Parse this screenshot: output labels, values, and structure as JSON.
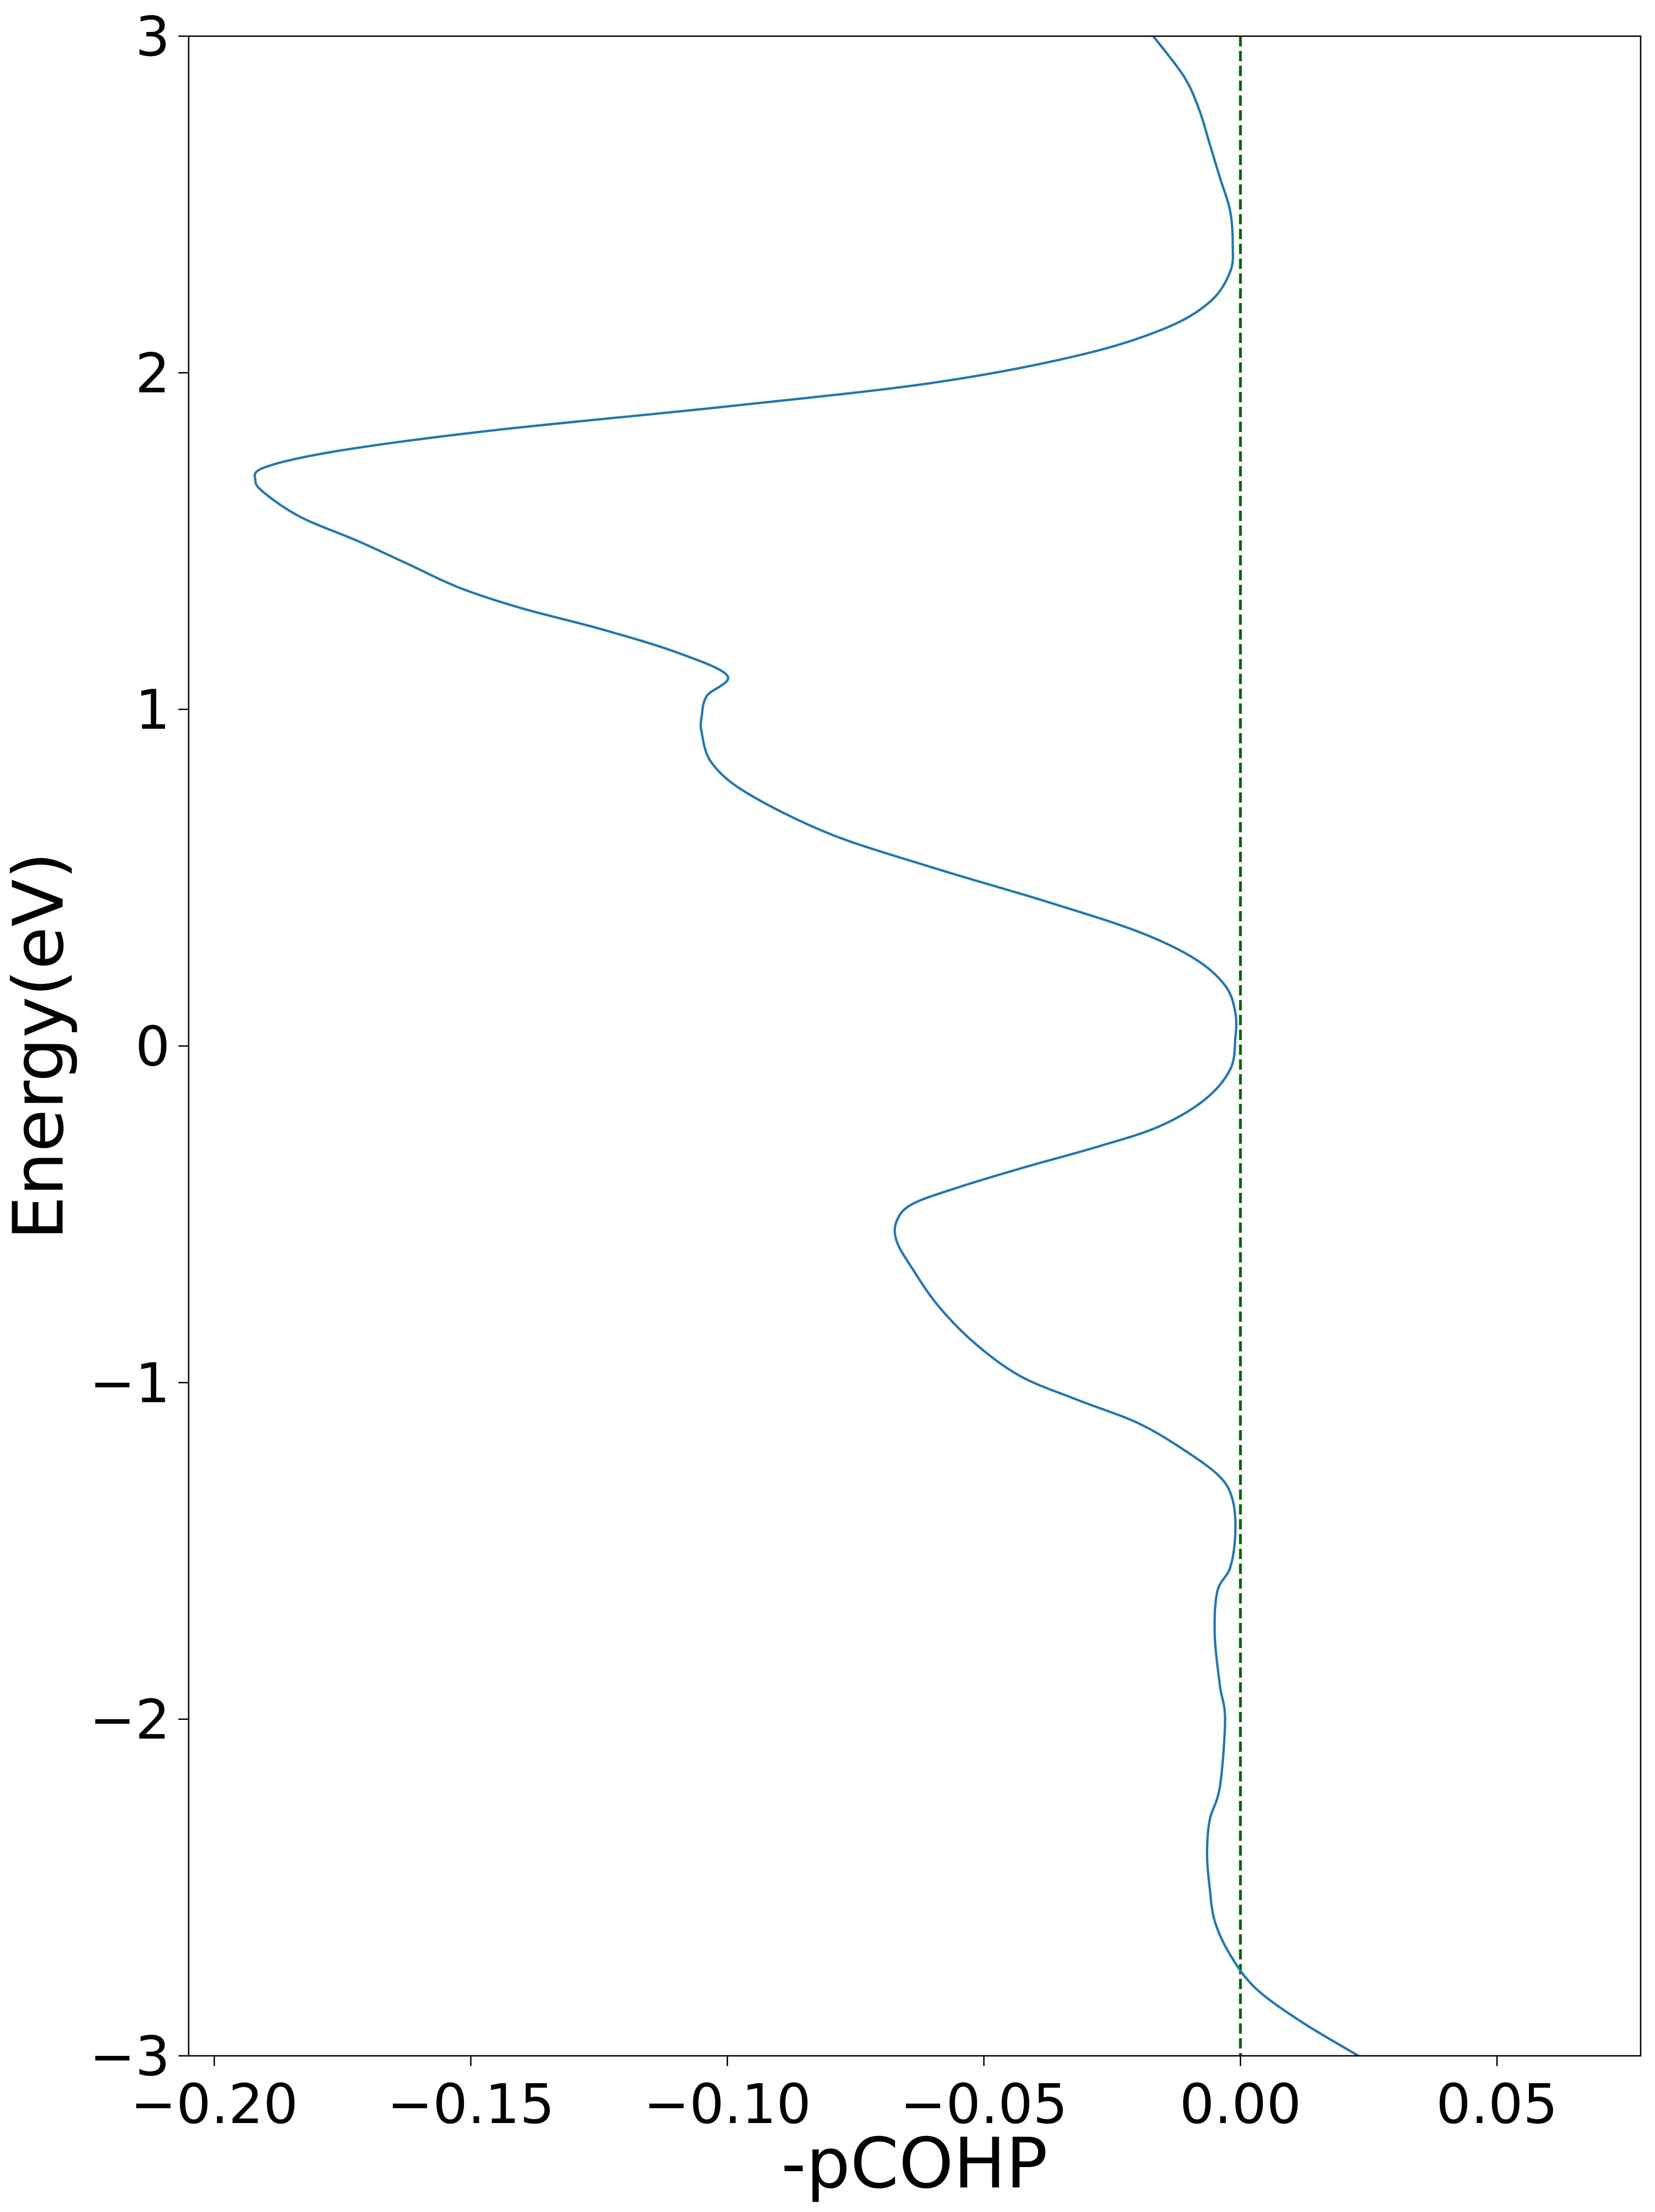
{
  "chart_data": {
    "type": "line",
    "title": "",
    "xlabel": "-pCOHP",
    "ylabel": "Energy(eV)",
    "xlim": [
      -0.205,
      0.078
    ],
    "ylim": [
      -3,
      3
    ],
    "xticks": [
      -0.2,
      -0.15,
      -0.1,
      -0.05,
      0.0,
      0.05
    ],
    "xtick_labels": [
      "−0.20",
      "−0.15",
      "−0.10",
      "−0.05",
      "0.00",
      "0.05"
    ],
    "yticks": [
      -3,
      -2,
      -1,
      0,
      1,
      2,
      3
    ],
    "ytick_labels": [
      "−3",
      "−2",
      "−1",
      "0",
      "1",
      "2",
      "3"
    ],
    "grid": false,
    "series": [
      {
        "color": "#1f77b4",
        "points": [
          {
            "x": 0.023,
            "y": -3.0
          },
          {
            "x": 0.012,
            "y": -2.9
          },
          {
            "x": 0.003,
            "y": -2.8
          },
          {
            "x": -0.002,
            "y": -2.7
          },
          {
            "x": -0.005,
            "y": -2.6
          },
          {
            "x": -0.006,
            "y": -2.5
          },
          {
            "x": -0.0065,
            "y": -2.4
          },
          {
            "x": -0.006,
            "y": -2.3
          },
          {
            "x": -0.004,
            "y": -2.2
          },
          {
            "x": -0.003,
            "y": -2.0
          },
          {
            "x": -0.004,
            "y": -1.9
          },
          {
            "x": -0.005,
            "y": -1.75
          },
          {
            "x": -0.0045,
            "y": -1.62
          },
          {
            "x": -0.002,
            "y": -1.55
          },
          {
            "x": -0.001,
            "y": -1.45
          },
          {
            "x": -0.0015,
            "y": -1.35
          },
          {
            "x": -0.004,
            "y": -1.28
          },
          {
            "x": -0.011,
            "y": -1.2
          },
          {
            "x": -0.02,
            "y": -1.12
          },
          {
            "x": -0.032,
            "y": -1.05
          },
          {
            "x": -0.043,
            "y": -0.98
          },
          {
            "x": -0.052,
            "y": -0.88
          },
          {
            "x": -0.059,
            "y": -0.77
          },
          {
            "x": -0.064,
            "y": -0.66
          },
          {
            "x": -0.067,
            "y": -0.58
          },
          {
            "x": -0.067,
            "y": -0.52
          },
          {
            "x": -0.064,
            "y": -0.47
          },
          {
            "x": -0.055,
            "y": -0.42
          },
          {
            "x": -0.042,
            "y": -0.36
          },
          {
            "x": -0.028,
            "y": -0.3
          },
          {
            "x": -0.016,
            "y": -0.24
          },
          {
            "x": -0.007,
            "y": -0.16
          },
          {
            "x": -0.002,
            "y": -0.07
          },
          {
            "x": -0.001,
            "y": 0.02
          },
          {
            "x": -0.001,
            "y": 0.1
          },
          {
            "x": -0.003,
            "y": 0.18
          },
          {
            "x": -0.009,
            "y": 0.26
          },
          {
            "x": -0.02,
            "y": 0.34
          },
          {
            "x": -0.038,
            "y": 0.43
          },
          {
            "x": -0.06,
            "y": 0.53
          },
          {
            "x": -0.08,
            "y": 0.63
          },
          {
            "x": -0.096,
            "y": 0.75
          },
          {
            "x": -0.103,
            "y": 0.84
          },
          {
            "x": -0.105,
            "y": 0.93
          },
          {
            "x": -0.105,
            "y": 0.98
          },
          {
            "x": -0.104,
            "y": 1.04
          },
          {
            "x": -0.1,
            "y": 1.1
          },
          {
            "x": -0.11,
            "y": 1.17
          },
          {
            "x": -0.125,
            "y": 1.24
          },
          {
            "x": -0.14,
            "y": 1.3
          },
          {
            "x": -0.152,
            "y": 1.36
          },
          {
            "x": -0.162,
            "y": 1.43
          },
          {
            "x": -0.172,
            "y": 1.5
          },
          {
            "x": -0.183,
            "y": 1.57
          },
          {
            "x": -0.19,
            "y": 1.64
          },
          {
            "x": -0.192,
            "y": 1.68
          },
          {
            "x": -0.19,
            "y": 1.72
          },
          {
            "x": -0.175,
            "y": 1.77
          },
          {
            "x": -0.145,
            "y": 1.83
          },
          {
            "x": -0.1,
            "y": 1.9
          },
          {
            "x": -0.06,
            "y": 1.97
          },
          {
            "x": -0.032,
            "y": 2.05
          },
          {
            "x": -0.015,
            "y": 2.13
          },
          {
            "x": -0.006,
            "y": 2.21
          },
          {
            "x": -0.002,
            "y": 2.3
          },
          {
            "x": -0.0015,
            "y": 2.38
          },
          {
            "x": -0.002,
            "y": 2.48
          },
          {
            "x": -0.004,
            "y": 2.58
          },
          {
            "x": -0.006,
            "y": 2.68
          },
          {
            "x": -0.008,
            "y": 2.78
          },
          {
            "x": -0.011,
            "y": 2.88
          },
          {
            "x": -0.017,
            "y": 3.0
          }
        ]
      }
    ],
    "reference_line": {
      "x": 0.0,
      "color": "#006400",
      "style": "dashed"
    }
  }
}
